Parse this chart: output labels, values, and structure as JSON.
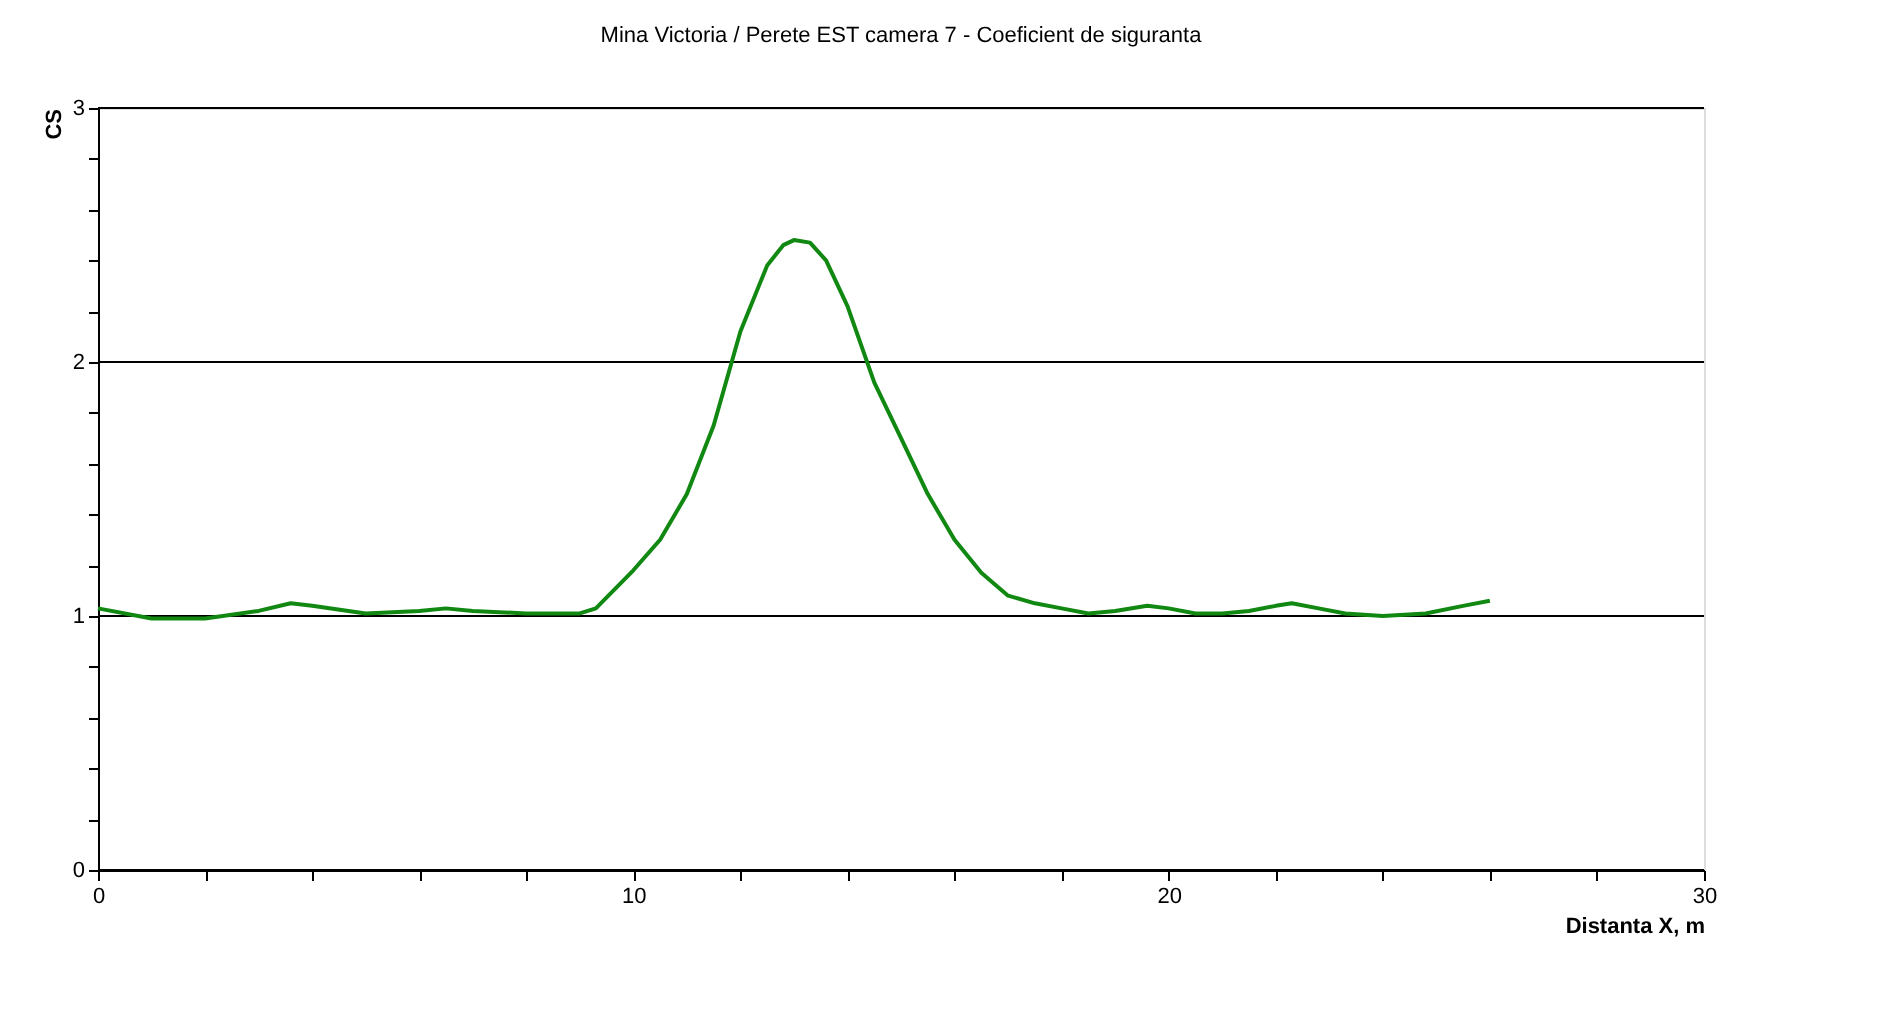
{
  "chart_data": {
    "type": "line",
    "title": "Mina Victoria / Perete EST camera 7 - Coeficient de siguranta",
    "xlabel": "Distanta X, m",
    "ylabel": "CS",
    "x": [
      0,
      1,
      2,
      3,
      3.6,
      4,
      5,
      6,
      6.5,
      7,
      8,
      9,
      9.3,
      10,
      10.5,
      11,
      11.5,
      12,
      12.5,
      12.8,
      13,
      13.3,
      13.6,
      14,
      14.5,
      15,
      15.5,
      16,
      16.5,
      17,
      17.5,
      18,
      18.5,
      19,
      19.6,
      20,
      20.5,
      21,
      21.5,
      22,
      22.3,
      22.8,
      23.3,
      24,
      24.8,
      25.5,
      26
    ],
    "series": [
      {
        "color": "#118811",
        "values": [
          1.03,
          0.99,
          0.99,
          1.02,
          1.05,
          1.04,
          1.01,
          1.02,
          1.03,
          1.02,
          1.01,
          1.01,
          1.03,
          1.18,
          1.3,
          1.48,
          1.75,
          2.12,
          2.38,
          2.46,
          2.48,
          2.47,
          2.4,
          2.22,
          1.92,
          1.7,
          1.48,
          1.3,
          1.17,
          1.08,
          1.05,
          1.03,
          1.01,
          1.02,
          1.04,
          1.03,
          1.01,
          1.01,
          1.02,
          1.04,
          1.05,
          1.03,
          1.01,
          1.0,
          1.01,
          1.04,
          1.06
        ]
      }
    ],
    "xlim": [
      0,
      30
    ],
    "ylim": [
      0,
      3
    ],
    "xticks": [
      0,
      {
        "value": 2,
        "label": null
      },
      {
        "value": 4,
        "label": null
      },
      {
        "value": 6,
        "label": null
      },
      {
        "value": 8,
        "label": null
      },
      10,
      {
        "value": 12,
        "label": null
      },
      {
        "value": 14,
        "label": null
      },
      {
        "value": 16,
        "label": null
      },
      {
        "value": 18,
        "label": null
      },
      20,
      {
        "value": 22,
        "label": null
      },
      {
        "value": 24,
        "label": null
      },
      {
        "value": 26,
        "label": null
      },
      {
        "value": 28,
        "label": null
      },
      30
    ],
    "yticks": [
      0,
      {
        "value": 0.2,
        "label": null
      },
      {
        "value": 0.4,
        "label": null
      },
      {
        "value": 0.6,
        "label": null
      },
      {
        "value": 0.8,
        "label": null
      },
      1,
      {
        "value": 1.2,
        "label": null
      },
      {
        "value": 1.4,
        "label": null
      },
      {
        "value": 1.6,
        "label": null
      },
      {
        "value": 1.8,
        "label": null
      },
      2,
      {
        "value": 2.2,
        "label": null
      },
      {
        "value": 2.4,
        "label": null
      },
      {
        "value": 2.6,
        "label": null
      },
      {
        "value": 2.8,
        "label": null
      },
      3
    ],
    "grid": "y",
    "marker": "none",
    "line_style": "solid",
    "legend": false
  }
}
